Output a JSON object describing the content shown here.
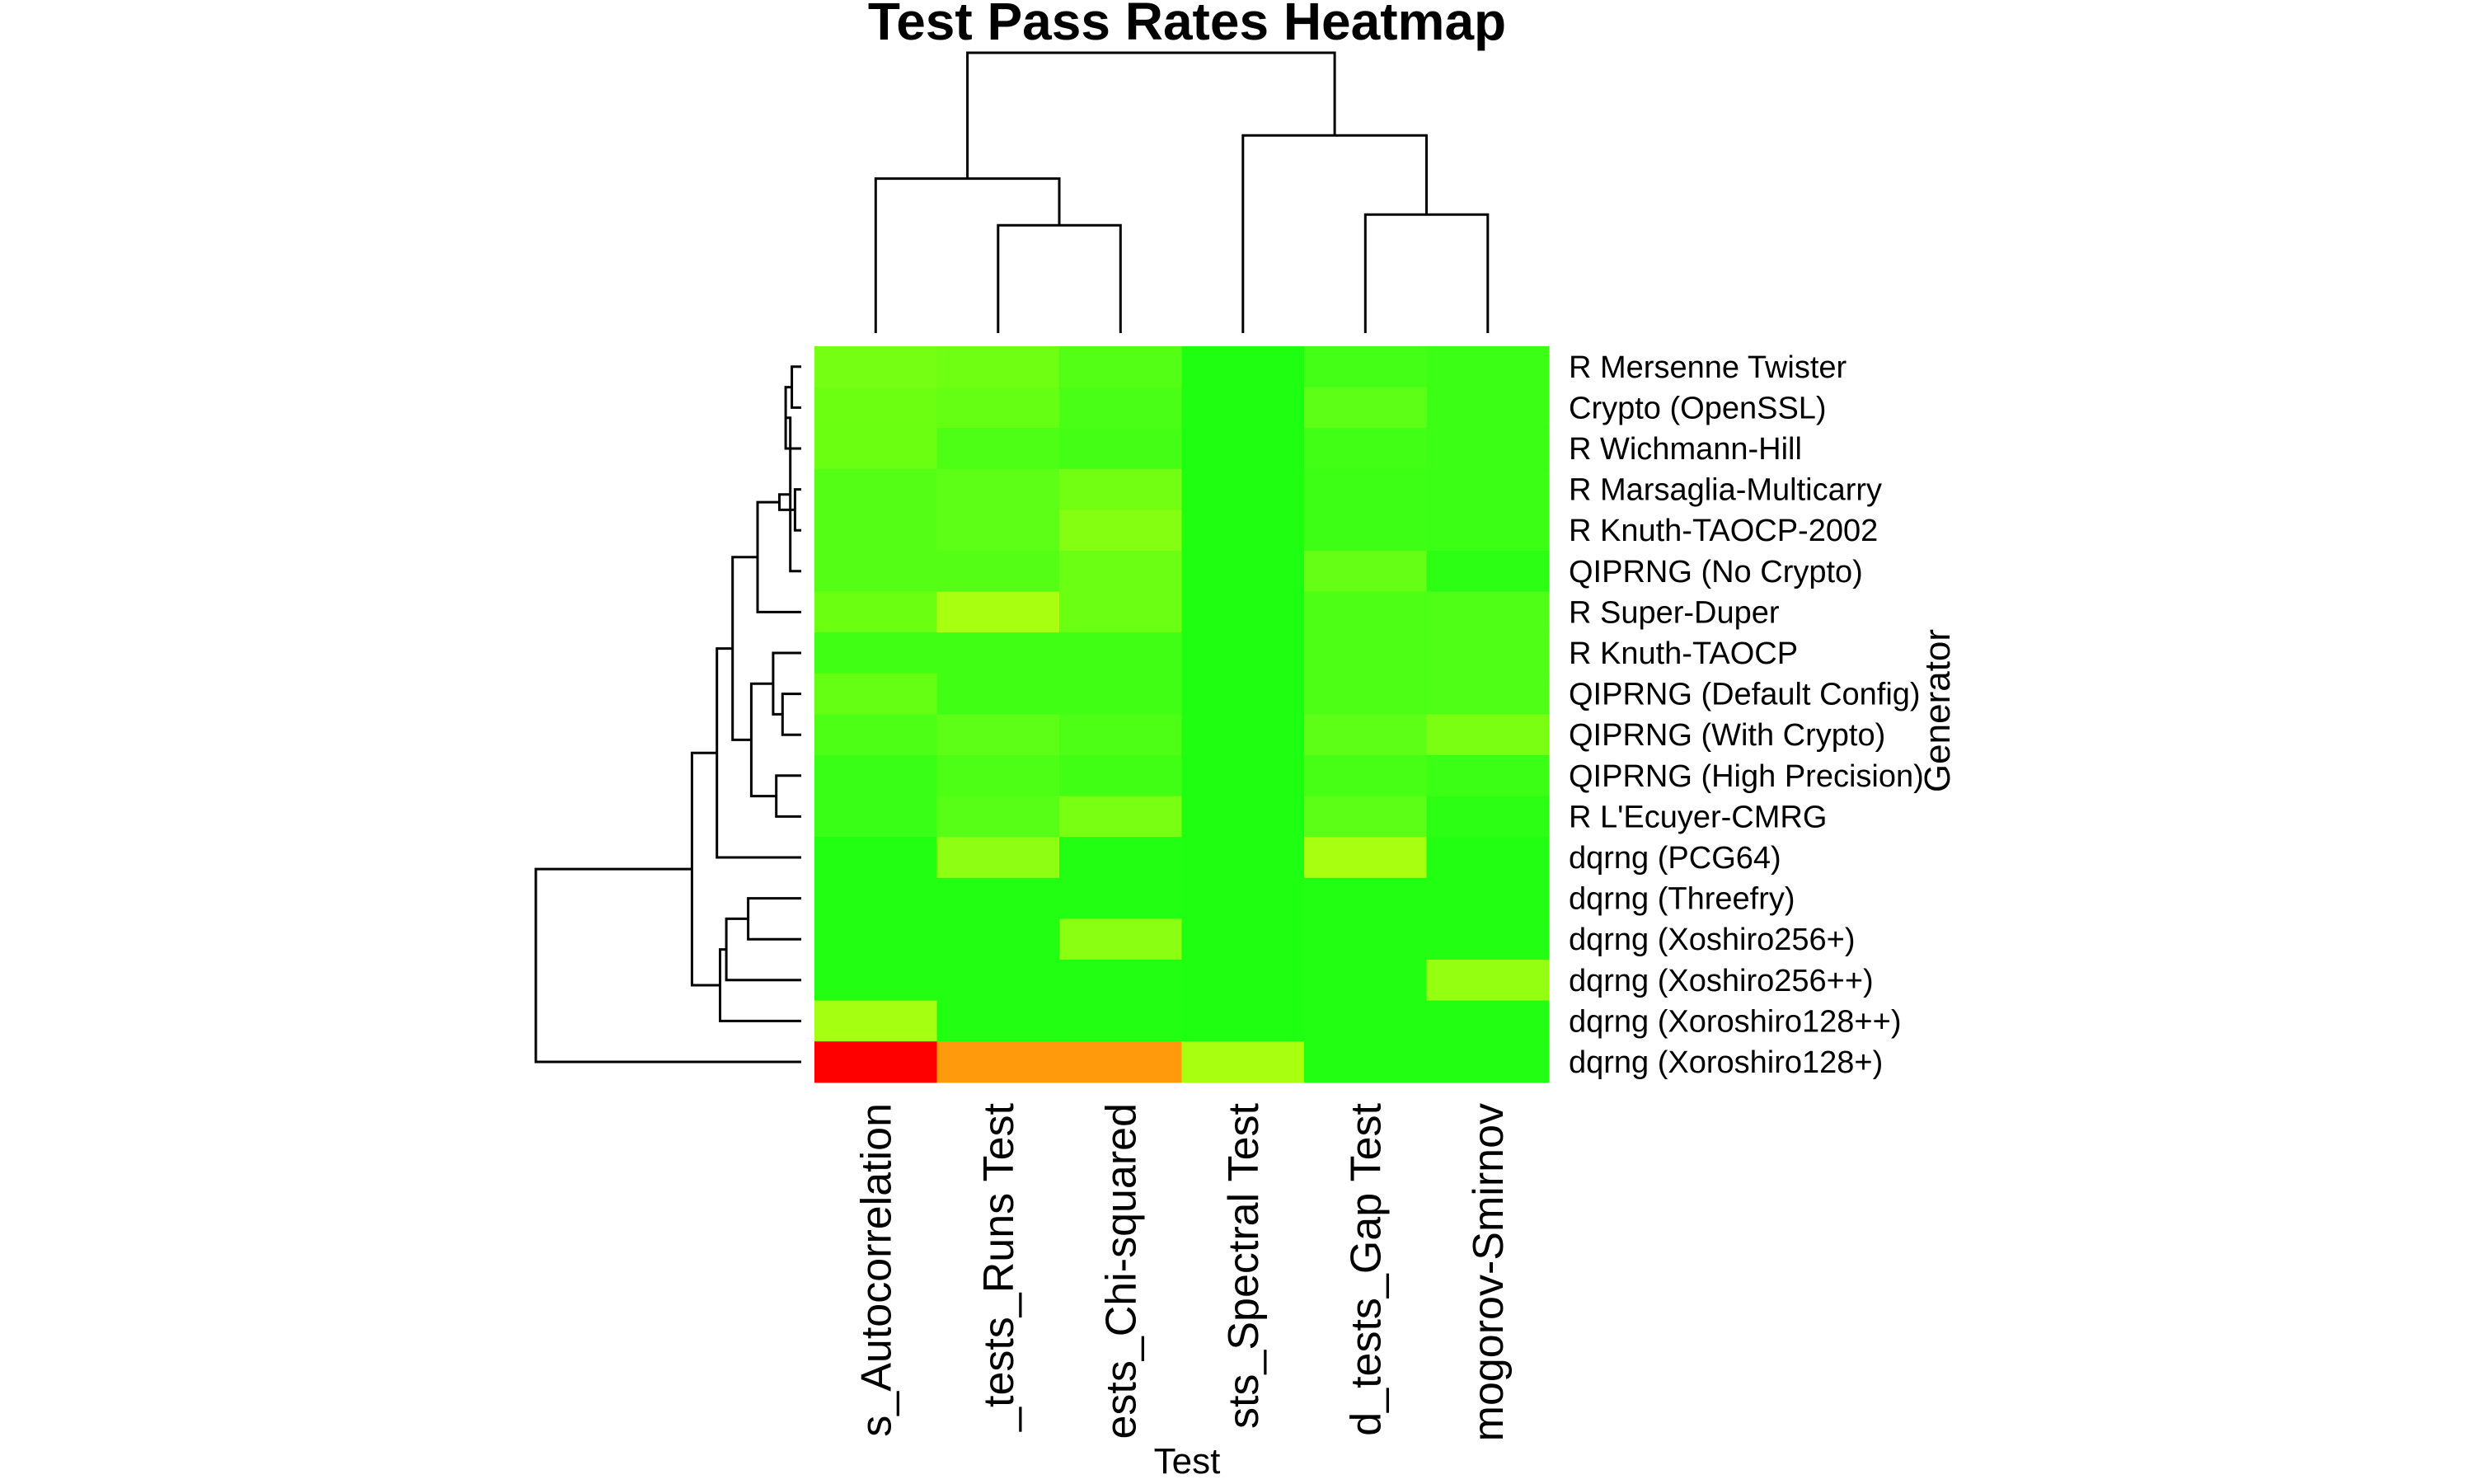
{
  "chart_data": {
    "type": "heatmap",
    "title": "Test Pass Rates Heatmap",
    "xlabel": "Test",
    "ylabel": "Generator",
    "columns": [
      "s_Autocorrelation",
      "_tests_Runs Test",
      "ests_Chi-squared",
      "sts_Spectral Test",
      "d_tests_Gap Test",
      "mogorov-Smirnov"
    ],
    "rows": [
      "R Mersenne Twister",
      "Crypto (OpenSSL)",
      "R Wichmann-Hill",
      "R Marsaglia-Multicarry",
      "R Knuth-TAOCP-2002",
      "QIPRNG (No Crypto)",
      "R Super-Duper",
      "R Knuth-TAOCP",
      "QIPRNG (Default Config)",
      "QIPRNG (With Crypto)",
      "QIPRNG (High Precision)",
      "R L'Ecuyer-CMRG",
      "dqrng (PCG64)",
      "dqrng (Threefry)",
      "dqrng (Xoshiro256+)",
      "dqrng (Xoshiro256++)",
      "dqrng (Xoroshiro128++)",
      "dqrng (Xoroshiro128+)"
    ],
    "cell_colors": [
      [
        "#75ff12",
        "#6fff12",
        "#52ff15",
        "#1fff12",
        "#44ff16",
        "#3bff15"
      ],
      [
        "#6dff12",
        "#64ff12",
        "#49ff15",
        "#1fff12",
        "#5dff16",
        "#3bff15"
      ],
      [
        "#6bff12",
        "#4cff15",
        "#44ff15",
        "#1fff12",
        "#41ff15",
        "#3bff15"
      ],
      [
        "#55ff15",
        "#5cff15",
        "#73ff12",
        "#1fff12",
        "#3dff15",
        "#3bff15"
      ],
      [
        "#55ff15",
        "#5cff15",
        "#84ff12",
        "#1fff12",
        "#3dff15",
        "#3bff15"
      ],
      [
        "#55ff15",
        "#55ff15",
        "#6bff14",
        "#1fff12",
        "#65ff16",
        "#2cff14"
      ],
      [
        "#6bff12",
        "#a8ff10",
        "#6bff14",
        "#1fff12",
        "#4dff15",
        "#50ff16"
      ],
      [
        "#40ff15",
        "#40ff15",
        "#40ff15",
        "#1fff12",
        "#4dff15",
        "#50ff16"
      ],
      [
        "#64ff12",
        "#40ff15",
        "#40ff15",
        "#1fff12",
        "#4dff15",
        "#50ff16"
      ],
      [
        "#4cff15",
        "#5cff15",
        "#4cff15",
        "#1fff12",
        "#5dff16",
        "#7aff12"
      ],
      [
        "#38ff15",
        "#4cff15",
        "#40ff15",
        "#1fff12",
        "#46ff15",
        "#3bff15"
      ],
      [
        "#38ff15",
        "#56ff15",
        "#78ff12",
        "#1fff12",
        "#5cff16",
        "#2cff14"
      ],
      [
        "#22ff12",
        "#8eff12",
        "#22ff12",
        "#1fff12",
        "#a8ff10",
        "#22ff12"
      ],
      [
        "#22ff12",
        "#22ff12",
        "#22ff12",
        "#1fff12",
        "#22ff12",
        "#22ff12"
      ],
      [
        "#22ff12",
        "#22ff12",
        "#8aff12",
        "#1fff12",
        "#22ff12",
        "#22ff12"
      ],
      [
        "#22ff12",
        "#22ff12",
        "#22ff12",
        "#1fff12",
        "#22ff12",
        "#95ff12"
      ],
      [
        "#a5ff10",
        "#22ff12",
        "#22ff12",
        "#1fff12",
        "#22ff12",
        "#22ff12"
      ],
      [
        "#ff0000",
        "#ff9a0c",
        "#ff9a0c",
        "#a8ff10",
        "#22ff12",
        "#22ff12"
      ]
    ],
    "row_dendrogram": [
      [
        0,
        1,
        0.3
      ],
      [
        18,
        2,
        0.5
      ],
      [
        3,
        4,
        0.2
      ],
      [
        5,
        19,
        0.35
      ],
      [
        20,
        21,
        0.7
      ],
      [
        22,
        6,
        1.4
      ],
      [
        8,
        9,
        0.6
      ],
      [
        7,
        24,
        0.9
      ],
      [
        10,
        11,
        0.8
      ],
      [
        25,
        26,
        1.6
      ],
      [
        23,
        27,
        2.2
      ],
      [
        28,
        12,
        2.7
      ],
      [
        13,
        14,
        1.7
      ],
      [
        30,
        15,
        2.4
      ],
      [
        31,
        16,
        2.6
      ],
      [
        29,
        32,
        3.5
      ],
      [
        33,
        17,
        8.5
      ]
    ],
    "col_dendrogram": [
      [
        1,
        2,
        3.0
      ],
      [
        0,
        6,
        4.3
      ],
      [
        4,
        5,
        3.3
      ],
      [
        3,
        8,
        5.5
      ],
      [
        7,
        9,
        7.8
      ]
    ]
  }
}
